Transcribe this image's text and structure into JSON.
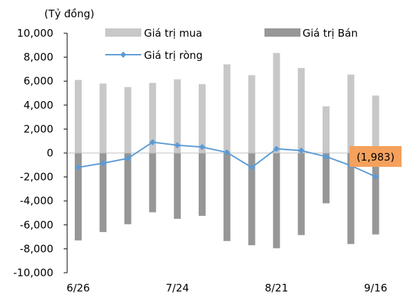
{
  "chart_data": {
    "type": "bar",
    "ylabel": "(Tỷ đồng)",
    "ylim": [
      -10000,
      10000
    ],
    "ytick_step": 2000,
    "yticks": [
      "10,000",
      "8,000",
      "6,000",
      "4,000",
      "2,000",
      "0",
      "-2,000",
      "-4,000",
      "-6,000",
      "-8,000",
      "-10,000"
    ],
    "xtick_labels": [
      "6/26",
      "7/24",
      "8/21",
      "9/16"
    ],
    "xtick_positions": [
      0,
      4,
      8,
      12
    ],
    "num_points": 13,
    "series": [
      {
        "name": "Giá trị mua",
        "kind": "bar",
        "color": "#c8c8c8",
        "values": [
          6100,
          5800,
          5500,
          5850,
          6150,
          5750,
          7400,
          6500,
          8350,
          7100,
          3900,
          6550,
          4800
        ]
      },
      {
        "name": "Giá trị Bán",
        "kind": "bar",
        "color": "#979797",
        "values": [
          -7300,
          -6600,
          -5950,
          -4950,
          -5500,
          -5250,
          -7350,
          -7700,
          -7950,
          -6850,
          -4200,
          -7600,
          -6800
        ]
      },
      {
        "name": "Giá trị ròng",
        "kind": "line",
        "color": "#5b9bd5",
        "values": [
          -1200,
          -850,
          -450,
          900,
          650,
          500,
          50,
          -1200,
          350,
          200,
          -300,
          -1050,
          -1983
        ]
      }
    ],
    "annotation": {
      "text": "(1,983)",
      "point_index": 12,
      "color": "#f4a15d"
    },
    "legend": "top"
  }
}
